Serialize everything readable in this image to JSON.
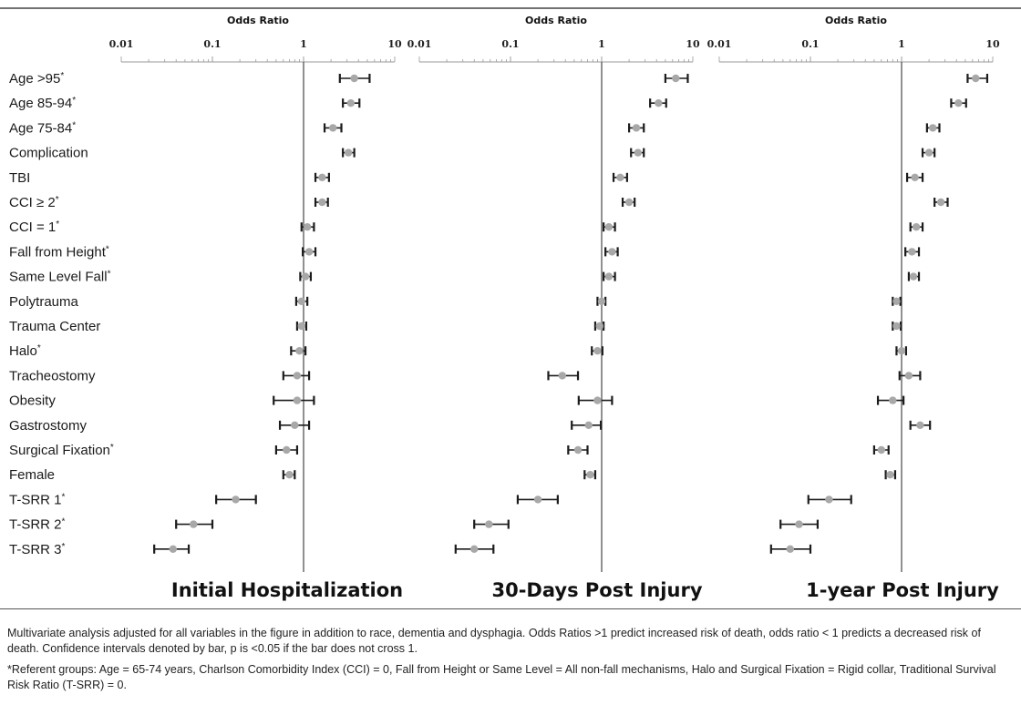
{
  "chart_data": {
    "type": "forest",
    "xscale": "log",
    "xlim": [
      0.01,
      10
    ],
    "reference_line": 1,
    "row_labels": [
      "Age >95*",
      "Age 85-94*",
      "Age 75-84*",
      "Complication",
      "TBI",
      "CCI ≥ 2*",
      "CCI = 1*",
      "Fall from Height*",
      "Same Level Fall*",
      "Polytrauma",
      "Trauma Center",
      "Halo*",
      "Tracheostomy",
      "Obesity",
      "Gastrostomy",
      "Surgical Fixation*",
      "Female",
      "T-SRR 1*",
      "T-SRR 2*",
      "T-SRR 3*"
    ],
    "panels": [
      {
        "title": "Initial Hospitalization",
        "axis_title": "Odds Ratio",
        "ticks": [
          "0.01",
          "0.1",
          "1",
          "10"
        ],
        "or": [
          3.6,
          3.3,
          2.1,
          3.1,
          1.6,
          1.6,
          1.1,
          1.15,
          1.05,
          0.95,
          0.95,
          0.9,
          0.85,
          0.85,
          0.8,
          0.65,
          0.7,
          0.18,
          0.062,
          0.037
        ],
        "lower": [
          2.5,
          2.7,
          1.7,
          2.7,
          1.35,
          1.35,
          0.95,
          0.98,
          0.92,
          0.83,
          0.85,
          0.73,
          0.6,
          0.47,
          0.55,
          0.5,
          0.6,
          0.11,
          0.04,
          0.023
        ],
        "upper": [
          5.3,
          4.1,
          2.6,
          3.6,
          1.9,
          1.85,
          1.3,
          1.35,
          1.2,
          1.1,
          1.07,
          1.05,
          1.15,
          1.3,
          1.15,
          0.85,
          0.8,
          0.3,
          0.1,
          0.055
        ]
      },
      {
        "title": "30-Days Post Injury",
        "axis_title": "Odds Ratio",
        "ticks": [
          "0.01",
          "0.1",
          "1",
          "10"
        ],
        "or": [
          6.5,
          4.2,
          2.4,
          2.5,
          1.6,
          2.0,
          1.2,
          1.3,
          1.2,
          1.0,
          0.95,
          0.9,
          0.37,
          0.9,
          0.72,
          0.55,
          0.75,
          0.2,
          0.058,
          0.04
        ],
        "lower": [
          5.0,
          3.4,
          2.0,
          2.1,
          1.35,
          1.7,
          1.05,
          1.1,
          1.05,
          0.9,
          0.85,
          0.78,
          0.26,
          0.56,
          0.47,
          0.43,
          0.65,
          0.12,
          0.04,
          0.025
        ],
        "upper": [
          8.8,
          5.1,
          2.9,
          2.9,
          1.9,
          2.3,
          1.4,
          1.5,
          1.4,
          1.1,
          1.05,
          1.02,
          0.55,
          1.3,
          0.98,
          0.7,
          0.85,
          0.33,
          0.095,
          0.065
        ]
      },
      {
        "title": "1-year Post Injury",
        "axis_title": "Odds Ratio",
        "ticks": [
          "0.01",
          "0.1",
          "1",
          "10"
        ],
        "or": [
          6.5,
          4.2,
          2.2,
          2.0,
          1.4,
          2.7,
          1.45,
          1.3,
          1.35,
          0.88,
          0.88,
          1.0,
          1.2,
          0.8,
          1.6,
          0.6,
          0.75,
          0.16,
          0.075,
          0.06
        ],
        "lower": [
          5.3,
          3.5,
          1.9,
          1.7,
          1.15,
          2.3,
          1.25,
          1.1,
          1.2,
          0.8,
          0.8,
          0.88,
          0.95,
          0.55,
          1.25,
          0.5,
          0.67,
          0.095,
          0.047,
          0.037
        ],
        "upper": [
          8.7,
          5.1,
          2.6,
          2.3,
          1.7,
          3.2,
          1.7,
          1.55,
          1.55,
          0.97,
          0.98,
          1.12,
          1.6,
          1.05,
          2.05,
          0.72,
          0.85,
          0.28,
          0.12,
          0.1
        ]
      }
    ],
    "colors": {
      "point": "#a8a8a8",
      "bar": "#1c1c1c",
      "reference_line": "#555555",
      "axis": "#999999"
    }
  },
  "footnotes": {
    "line1": "Multivariate analysis adjusted for all variables in the figure in addition to race, dementia and dysphagia. Odds Ratios >1 predict increased risk of death, odds ratio < 1 predicts a decreased risk of death.  Confidence intervals denoted by bar, p is <0.05 if the bar does not cross 1.",
    "line2": "*Referent groups: Age = 65-74 years, Charlson Comorbidity Index (CCI) = 0, Fall from Height or Same Level = All non-fall mechanisms, Halo and Surgical Fixation = Rigid collar, Traditional Survival Risk Ratio (T-SRR)  = 0."
  }
}
